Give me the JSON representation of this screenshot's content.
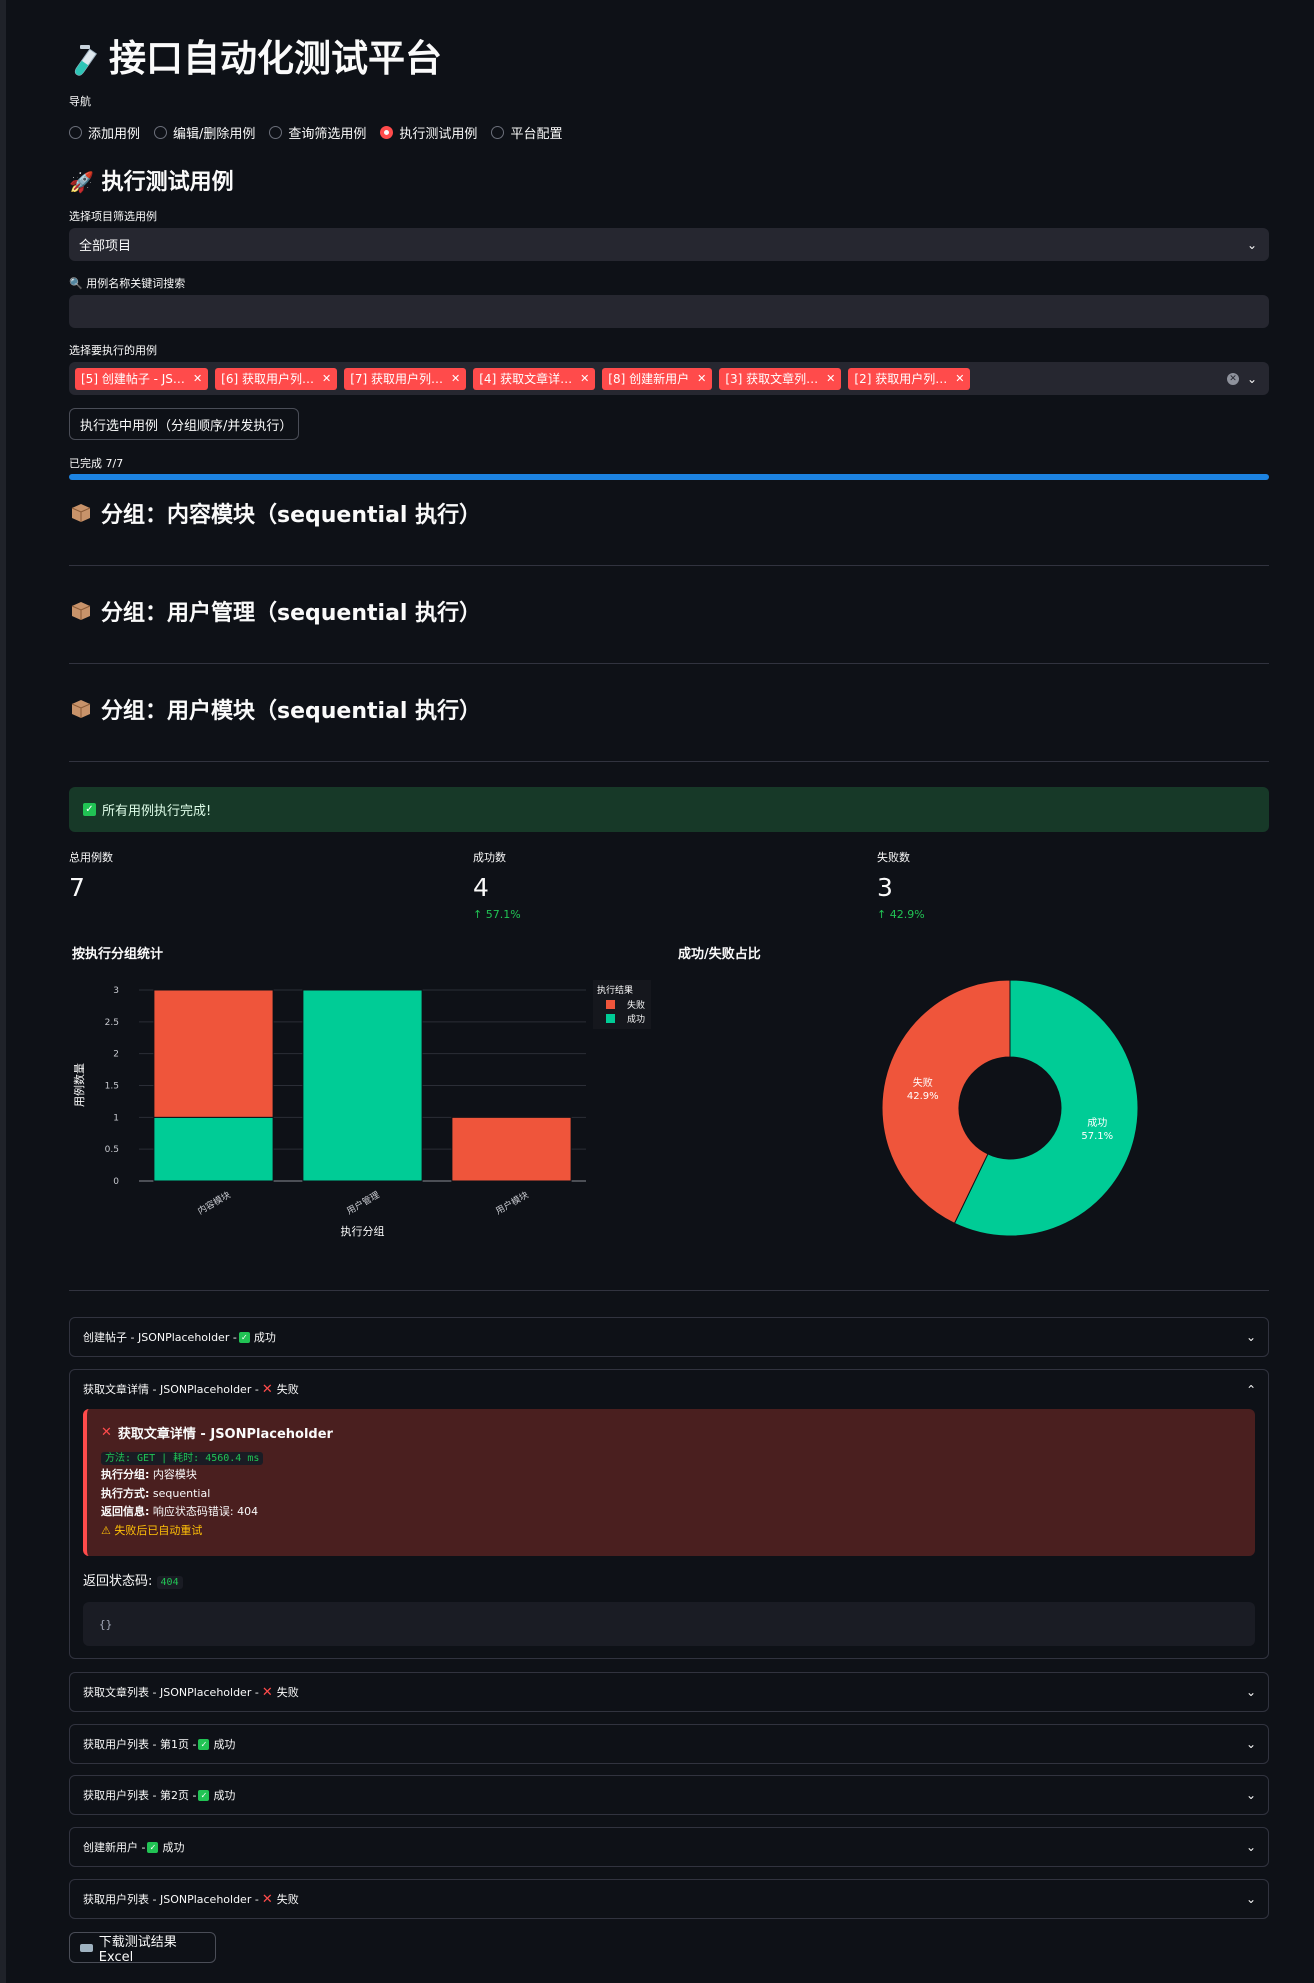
{
  "app": {
    "title": "接口自动化测试平台",
    "nav_label": "导航",
    "nav_options": [
      "添加用例",
      "编辑/删除用例",
      "查询筛选用例",
      "执行测试用例",
      "平台配置"
    ],
    "nav_selected": "执行测试用例"
  },
  "section": {
    "title": "执行测试用例",
    "project_label": "选择项目筛选用例",
    "project_value": "全部项目",
    "search_label": "用例名称关键词搜索",
    "search_value": "",
    "cases_label": "选择要执行的用例",
    "selected_cases": [
      "[5] 创建帖子 - JS…",
      "[6] 获取用户列…",
      "[7] 获取用户列…",
      "[4] 获取文章详…",
      "[8] 创建新用户",
      "[3] 获取文章列…",
      "[2] 获取用户列…"
    ],
    "run_button": "执行选中用例（分组顺序/并发执行）",
    "progress_text": "已完成 7/7",
    "progress_fraction": 1.0
  },
  "groups": [
    "分组：内容模块（sequential 执行）",
    "分组：用户管理（sequential 执行）",
    "分组：用户模块（sequential 执行）"
  ],
  "result": {
    "success_msg": "所有用例执行完成!",
    "metrics": [
      {
        "label": "总用例数",
        "value": "7",
        "delta": ""
      },
      {
        "label": "成功数",
        "value": "4",
        "delta": "57.1%"
      },
      {
        "label": "失败数",
        "value": "3",
        "delta": "42.9%"
      }
    ]
  },
  "chart_data": [
    {
      "type": "bar",
      "title": "按执行分组统计",
      "xlabel": "执行分组",
      "ylabel": "用例数量",
      "categories": [
        "内容模块",
        "用户管理",
        "用户模块"
      ],
      "stacked": true,
      "series": [
        {
          "name": "成功",
          "values": [
            1,
            3,
            0
          ],
          "color": "#00cc96"
        },
        {
          "name": "失败",
          "values": [
            2,
            0,
            1
          ],
          "color": "#ef553b"
        }
      ],
      "ylim": [
        0,
        3
      ],
      "yticks": [
        "0",
        "0.5",
        "1",
        "1.5",
        "2",
        "2.5",
        "3"
      ],
      "legend_title": "执行结果",
      "legend_position": "top-right",
      "legend_order": [
        "失败",
        "成功"
      ],
      "grid": true
    },
    {
      "type": "pie",
      "title": "成功/失败占比",
      "hole": true,
      "slices": [
        {
          "label": "成功",
          "value": 4,
          "percent": "57.1%",
          "color": "#00cc96"
        },
        {
          "label": "失败",
          "value": 3,
          "percent": "42.9%",
          "color": "#ef553b"
        }
      ],
      "legend_position": "top-right"
    }
  ],
  "details": {
    "expanders": [
      {
        "name": "创建帖子 - JSONPlaceholder - ",
        "status": "成功",
        "ok": true
      },
      {
        "name": "获取文章详情 - JSONPlaceholder - ",
        "status": "失败",
        "ok": false,
        "expanded": true
      },
      {
        "name": "获取文章列表 - JSONPlaceholder - ",
        "status": "失败",
        "ok": false
      },
      {
        "name": "获取用户列表 - 第1页 - ",
        "status": "成功",
        "ok": true
      },
      {
        "name": "获取用户列表 - 第2页 - ",
        "status": "成功",
        "ok": true
      },
      {
        "name": "创建新用户 - ",
        "status": "成功",
        "ok": true
      },
      {
        "name": "获取用户列表 - JSONPlaceholder - ",
        "status": "失败",
        "ok": false
      }
    ],
    "open_detail": {
      "title": "获取文章详情 - JSONPlaceholder",
      "method_line": "方法: GET | 耗时: 4560.4 ms",
      "group_label": "执行分组:",
      "group_value": "内容模块",
      "mode_label": "执行方式:",
      "mode_value": "sequential",
      "info_label": "返回信息:",
      "info_value": "响应状态码错误: 404",
      "retry_note": "失败后已自动重试",
      "status_label": "返回状态码:",
      "status_code": "404",
      "body": "{}"
    },
    "download_button": "下载测试结果 Excel"
  }
}
